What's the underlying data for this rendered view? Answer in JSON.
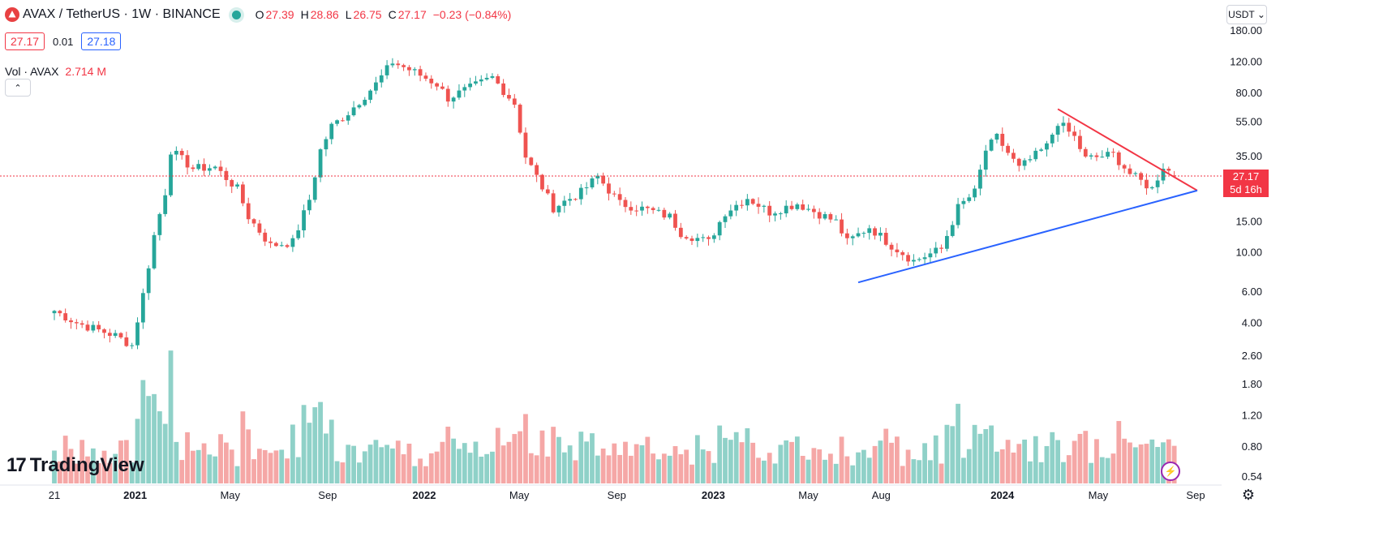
{
  "header": {
    "symbol": "AVAX / TetherUS · 1W · BINANCE",
    "open_label": "O",
    "open": "27.39",
    "high_label": "H",
    "high": "28.86",
    "low_label": "L",
    "low": "26.75",
    "close_label": "C",
    "close": "27.17",
    "change": "−0.23 (−0.84%)"
  },
  "quote": {
    "bid": "27.17",
    "spread": "0.01",
    "ask": "27.18"
  },
  "volume": {
    "label": "Vol · AVAX",
    "value": "2.714 M"
  },
  "collapse_glyph": "⌃",
  "currency_selector": "USDT ⌄",
  "last_price": {
    "price": "27.17",
    "countdown": "5d 16h"
  },
  "branding": {
    "logo_mark": "17",
    "logo_text": "TradingView"
  },
  "icons": [
    "avax-logo-icon",
    "market-status-dot-icon",
    "chevron-up-icon",
    "chevron-down-icon",
    "settings-icon",
    "bolt-icon"
  ],
  "colors": {
    "up": "#26a69a",
    "down": "#ef5350",
    "up_volume": "#8fd1c8",
    "down_volume": "#f5a7a6",
    "support_line": "#2962ff",
    "resistance_line": "#f23645",
    "last_price": "#f23645"
  },
  "chart_data": {
    "type": "candlestick",
    "y_scale": "log",
    "y_ticks": [
      0.54,
      0.8,
      1.2,
      1.8,
      2.6,
      4.0,
      6.0,
      10.0,
      15.0,
      23.0,
      35.0,
      55.0,
      80.0,
      120.0,
      180.0
    ],
    "y_tick_labels": [
      "0.54",
      "0.80",
      "1.20",
      "1.80",
      "2.60",
      "4.00",
      "6.00",
      "10.00",
      "15.00",
      "",
      "35.00",
      "55.00",
      "80.00",
      "120.00",
      "180.00"
    ],
    "x_ticks": [
      "2020-09-21",
      "2021-01-01",
      "2021-05-01",
      "2021-09-01",
      "2022-01-01",
      "2022-05-01",
      "2022-09-01",
      "2023-01-01",
      "2023-05-01",
      "2023-08-01",
      "2023-12-01",
      "2024-01-01",
      "2024-05-01",
      "2024-09-01"
    ],
    "x_tick_labels": [
      "21",
      "2021",
      "May",
      "Sep",
      "2022",
      "May",
      "Sep",
      "2023",
      "May",
      "Aug",
      "",
      "2024",
      "May",
      "Sep"
    ],
    "price_path": [
      [
        "2020-09-21",
        4.7
      ],
      [
        "2020-10-20",
        4.0
      ],
      [
        "2020-12-07",
        3.4
      ],
      [
        "2020-12-28",
        3.0
      ],
      [
        "2021-01-11",
        5.8
      ],
      [
        "2021-01-25",
        12.5
      ],
      [
        "2021-02-08",
        22.0
      ],
      [
        "2021-02-15",
        38.0
      ],
      [
        "2021-03-15",
        30.0
      ],
      [
        "2021-04-12",
        30.5
      ],
      [
        "2021-05-10",
        23.0
      ],
      [
        "2021-05-24",
        16.0
      ],
      [
        "2021-06-21",
        11.0
      ],
      [
        "2021-07-19",
        11.5
      ],
      [
        "2021-08-09",
        20.0
      ],
      [
        "2021-08-23",
        38.0
      ],
      [
        "2021-09-06",
        52.0
      ],
      [
        "2021-09-27",
        62.0
      ],
      [
        "2021-11-01",
        90.0
      ],
      [
        "2021-11-22",
        120.0
      ],
      [
        "2021-12-20",
        105.0
      ],
      [
        "2022-01-17",
        90.0
      ],
      [
        "2022-01-31",
        75.0
      ],
      [
        "2022-03-28",
        98.0
      ],
      [
        "2022-04-25",
        70.0
      ],
      [
        "2022-05-09",
        35.0
      ],
      [
        "2022-06-13",
        18.0
      ],
      [
        "2022-07-18",
        22.0
      ],
      [
        "2022-08-08",
        27.0
      ],
      [
        "2022-09-05",
        19.0
      ],
      [
        "2022-10-10",
        17.5
      ],
      [
        "2022-11-07",
        16.0
      ],
      [
        "2022-11-21",
        13.0
      ],
      [
        "2022-12-26",
        11.5
      ],
      [
        "2023-01-16",
        17.0
      ],
      [
        "2023-02-13",
        20.5
      ],
      [
        "2023-03-13",
        17.0
      ],
      [
        "2023-04-17",
        19.0
      ],
      [
        "2023-06-05",
        15.0
      ],
      [
        "2023-06-19",
        11.5
      ],
      [
        "2023-07-17",
        14.0
      ],
      [
        "2023-08-14",
        11.0
      ],
      [
        "2023-09-11",
        9.0
      ],
      [
        "2023-10-16",
        10.5
      ],
      [
        "2023-11-06",
        18.0
      ],
      [
        "2023-11-27",
        22.0
      ],
      [
        "2023-12-11",
        38.0
      ],
      [
        "2023-12-25",
        45.0
      ],
      [
        "2024-01-22",
        30.0
      ],
      [
        "2024-02-26",
        40.0
      ],
      [
        "2024-03-11",
        55.0
      ],
      [
        "2024-04-01",
        45.0
      ],
      [
        "2024-04-15",
        34.0
      ],
      [
        "2024-05-20",
        36.0
      ],
      [
        "2024-06-10",
        28.0
      ],
      [
        "2024-07-08",
        23.0
      ],
      [
        "2024-07-22",
        31.0
      ],
      [
        "2024-08-05",
        27.17
      ]
    ],
    "trendlines": [
      {
        "name": "resistance",
        "from": [
          "2024-03-11",
          65.0
        ],
        "to": [
          "2024-09-03",
          22.5
        ]
      },
      {
        "name": "support",
        "from": [
          "2023-07-03",
          6.8
        ],
        "to": [
          "2024-09-03",
          22.5
        ]
      }
    ],
    "last_price": 27.17
  }
}
